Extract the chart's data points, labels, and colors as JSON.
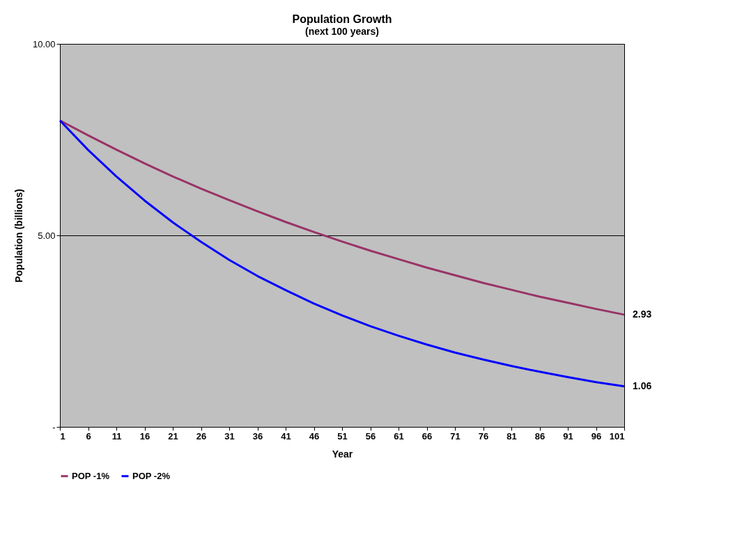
{
  "chart_data": {
    "type": "line",
    "title": "Population Growth",
    "subtitle": "(next 100 years)",
    "xlabel": "Year",
    "ylabel": "Population (billions)",
    "x": [
      1,
      6,
      11,
      16,
      21,
      26,
      31,
      36,
      41,
      46,
      51,
      56,
      61,
      66,
      71,
      76,
      81,
      86,
      91,
      96,
      101
    ],
    "xlim": [
      1,
      101
    ],
    "xticks": [
      1,
      6,
      11,
      16,
      21,
      26,
      31,
      36,
      41,
      46,
      51,
      56,
      61,
      66,
      71,
      76,
      81,
      86,
      91,
      96,
      101
    ],
    "ylim": [
      0,
      10
    ],
    "yticks": [
      {
        "value": 0,
        "label": "-"
      },
      {
        "value": 5,
        "label": "5.00"
      },
      {
        "value": 10,
        "label": "10.00"
      }
    ],
    "grid": "y",
    "legend": "bottom",
    "marker": "none",
    "line_style": "solid",
    "series": [
      {
        "name": "POP -1%",
        "color": "#993366",
        "values": [
          8.0,
          7.61,
          7.24,
          6.88,
          6.54,
          6.22,
          5.92,
          5.63,
          5.35,
          5.09,
          4.84,
          4.6,
          4.38,
          4.16,
          3.96,
          3.76,
          3.58,
          3.4,
          3.24,
          3.08,
          2.93
        ],
        "value_labels": [
          null,
          null,
          null,
          null,
          null,
          null,
          null,
          null,
          null,
          null,
          null,
          null,
          null,
          null,
          null,
          null,
          null,
          null,
          null,
          null,
          "2.93"
        ]
      },
      {
        "name": "POP -2%",
        "color": "#0000ff",
        "values": [
          8.0,
          7.23,
          6.54,
          5.91,
          5.34,
          4.83,
          4.36,
          3.94,
          3.57,
          3.22,
          2.91,
          2.63,
          2.38,
          2.15,
          1.94,
          1.76,
          1.59,
          1.44,
          1.3,
          1.17,
          1.06
        ],
        "value_labels": [
          null,
          null,
          null,
          null,
          null,
          null,
          null,
          null,
          null,
          null,
          null,
          null,
          null,
          null,
          null,
          null,
          null,
          null,
          null,
          null,
          "1.06"
        ]
      }
    ]
  }
}
